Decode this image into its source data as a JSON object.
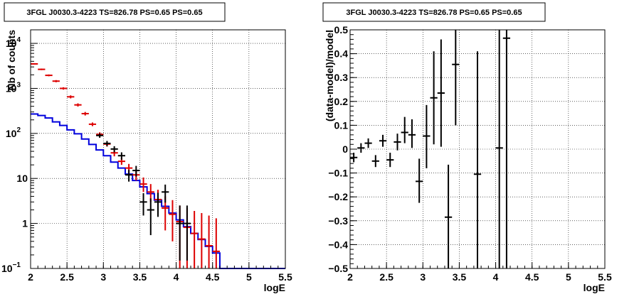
{
  "chart_data": [
    {
      "type": "line",
      "title": "3FGL J0030.3-4223 TS=826.78 PS=0.65 PS=0.65",
      "xlabel": "logE",
      "ylabel": "Nb of counts",
      "xlim": [
        2,
        5.5
      ],
      "ylim": [
        0.1,
        20000
      ],
      "yscale": "log",
      "grid": true,
      "x_ticks": [
        "2",
        "2.5",
        "3",
        "3.5",
        "4",
        "4.5",
        "5",
        "5.5"
      ],
      "y_ticks": [
        "10^{-1}",
        "1",
        "10",
        "10^{2}",
        "10^{3}",
        "10^{4}"
      ],
      "series": [
        {
          "color": "#0000dd",
          "style": "step",
          "bin_edges": [
            2.0,
            2.1,
            2.2,
            2.3,
            2.4,
            2.5,
            2.6,
            2.7,
            2.8,
            2.9,
            3.0,
            3.1,
            3.2,
            3.3,
            3.4,
            3.5,
            3.6,
            3.7,
            3.8,
            3.9,
            4.0,
            4.1,
            4.2,
            4.3,
            4.4,
            4.5,
            4.6,
            5.5
          ],
          "values": [
            270,
            250,
            220,
            180,
            150,
            120,
            98,
            75,
            57,
            43,
            32,
            23,
            17,
            12.5,
            9,
            6.5,
            4.6,
            3.3,
            2.4,
            1.7,
            1.2,
            0.85,
            0.6,
            0.44,
            0.31,
            0.22,
            0.1
          ]
        },
        {
          "color": "#dd0000",
          "style": "errorbar",
          "x": [
            2.05,
            2.15,
            2.25,
            2.35,
            2.45,
            2.55,
            2.65,
            2.75,
            2.85,
            2.95,
            3.05,
            3.15,
            3.25,
            3.35,
            3.45,
            3.55,
            3.65,
            3.75,
            3.85,
            3.95,
            4.05,
            4.15,
            4.25,
            4.35,
            4.45,
            4.55
          ],
          "y": [
            3500,
            2650,
            1950,
            1450,
            1000,
            650,
            430,
            275,
            160,
            95,
            58,
            37,
            24,
            17,
            12,
            7.5,
            5,
            3.4,
            2.2,
            1.6,
            1.1,
            0.82,
            0.6,
            0.45,
            0.32,
            0.24
          ],
          "y_low": [
            3380,
            2550,
            1860,
            1370,
            940,
            600,
            395,
            250,
            145,
            84,
            51,
            31,
            20,
            13,
            9,
            5,
            3,
            1.5,
            0.7,
            0.4,
            0.1,
            0.1,
            0.1,
            0.1,
            0.1,
            0.1
          ],
          "y_high": [
            3620,
            2750,
            2040,
            1530,
            1060,
            700,
            465,
            300,
            175,
            106,
            65,
            43,
            29,
            21,
            15,
            10.5,
            7.5,
            5.6,
            4.0,
            3.3,
            2.5,
            2.2,
            1.9,
            1.7,
            1.5,
            1.3
          ]
        },
        {
          "color": "#000000",
          "style": "errorbar",
          "x": [
            2.95,
            3.05,
            3.15,
            3.25,
            3.35,
            3.45,
            3.55,
            3.65,
            3.75,
            3.85,
            4.05,
            4.15
          ],
          "y": [
            90,
            60,
            45,
            32,
            12,
            15,
            3,
            2,
            3,
            5,
            1,
            1
          ],
          "y_low": [
            80,
            52,
            38,
            26,
            8.5,
            11,
            1.5,
            0.55,
            1.4,
            2.9,
            0.15,
            0.15
          ],
          "y_high": [
            100,
            68,
            52,
            38,
            15.5,
            19,
            4.7,
            3.6,
            4.8,
            7.3,
            2.5,
            2.5
          ]
        }
      ]
    },
    {
      "type": "scatter",
      "title": "3FGL J0030.3-4223 TS=826.78 PS=0.65 PS=0.65",
      "xlabel": "logE",
      "ylabel": "(data-model)/model",
      "xlim": [
        2,
        5.5
      ],
      "ylim": [
        -0.5,
        0.5
      ],
      "grid": true,
      "x_ticks": [
        "2",
        "2.5",
        "3",
        "3.5",
        "4",
        "4.5",
        "5",
        "5.5"
      ],
      "y_ticks": [
        "−0.5",
        "−0.4",
        "−0.3",
        "−0.2",
        "−0.1",
        "0",
        "0.1",
        "0.2",
        "0.3",
        "0.4",
        "0.5"
      ],
      "series": [
        {
          "color": "#000000",
          "style": "errorbar",
          "x": [
            2.05,
            2.15,
            2.25,
            2.35,
            2.45,
            2.55,
            2.65,
            2.75,
            2.85,
            2.95,
            3.05,
            3.15,
            3.25,
            3.35,
            3.45,
            3.75,
            4.05,
            4.15
          ],
          "y": [
            -0.035,
            0.005,
            0.025,
            -0.05,
            0.035,
            -0.045,
            0.03,
            0.07,
            0.06,
            -0.135,
            0.055,
            0.215,
            0.235,
            -0.285,
            0.355,
            -0.105,
            0.005,
            0.465
          ],
          "y_low": [
            -0.055,
            -0.015,
            0.005,
            -0.075,
            0.01,
            -0.075,
            -0.005,
            0.025,
            0.005,
            -0.225,
            -0.08,
            0.02,
            0.01,
            -0.5,
            0.1,
            -0.5,
            -0.5,
            -0.5
          ],
          "y_high": [
            -0.015,
            0.025,
            0.045,
            -0.025,
            0.06,
            -0.015,
            0.065,
            0.135,
            0.125,
            -0.04,
            0.185,
            0.41,
            0.46,
            -0.065,
            0.5,
            0.41,
            0.5,
            0.5
          ]
        }
      ]
    }
  ]
}
